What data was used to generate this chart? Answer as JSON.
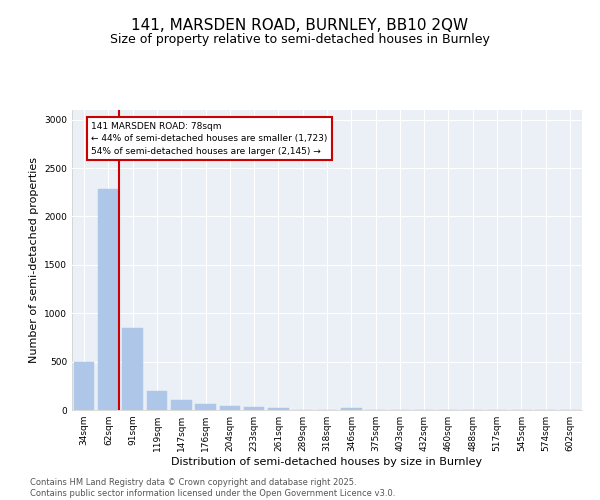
{
  "title1": "141, MARSDEN ROAD, BURNLEY, BB10 2QW",
  "title2": "Size of property relative to semi-detached houses in Burnley",
  "xlabel": "Distribution of semi-detached houses by size in Burnley",
  "ylabel": "Number of semi-detached properties",
  "categories": [
    "34sqm",
    "62sqm",
    "91sqm",
    "119sqm",
    "147sqm",
    "176sqm",
    "204sqm",
    "233sqm",
    "261sqm",
    "289sqm",
    "318sqm",
    "346sqm",
    "375sqm",
    "403sqm",
    "432sqm",
    "460sqm",
    "488sqm",
    "517sqm",
    "545sqm",
    "574sqm",
    "602sqm"
  ],
  "values": [
    500,
    2280,
    850,
    200,
    100,
    60,
    38,
    28,
    18,
    5,
    0,
    20,
    0,
    0,
    0,
    0,
    0,
    0,
    0,
    0,
    0
  ],
  "bar_color": "#aec6e8",
  "bar_edgecolor": "#aec6e8",
  "vline_color": "#cc0000",
  "vline_x": 1.45,
  "annotation_title": "141 MARSDEN ROAD: 78sqm",
  "annotation_line2": "← 44% of semi-detached houses are smaller (1,723)",
  "annotation_line3": "54% of semi-detached houses are larger (2,145) →",
  "ylim": [
    0,
    3100
  ],
  "yticks": [
    0,
    500,
    1000,
    1500,
    2000,
    2500,
    3000
  ],
  "footer1": "Contains HM Land Registry data © Crown copyright and database right 2025.",
  "footer2": "Contains public sector information licensed under the Open Government Licence v3.0.",
  "background_color": "#eaf0f6",
  "title_fontsize": 11,
  "subtitle_fontsize": 9,
  "axis_label_fontsize": 8,
  "tick_fontsize": 6.5,
  "footer_fontsize": 6
}
